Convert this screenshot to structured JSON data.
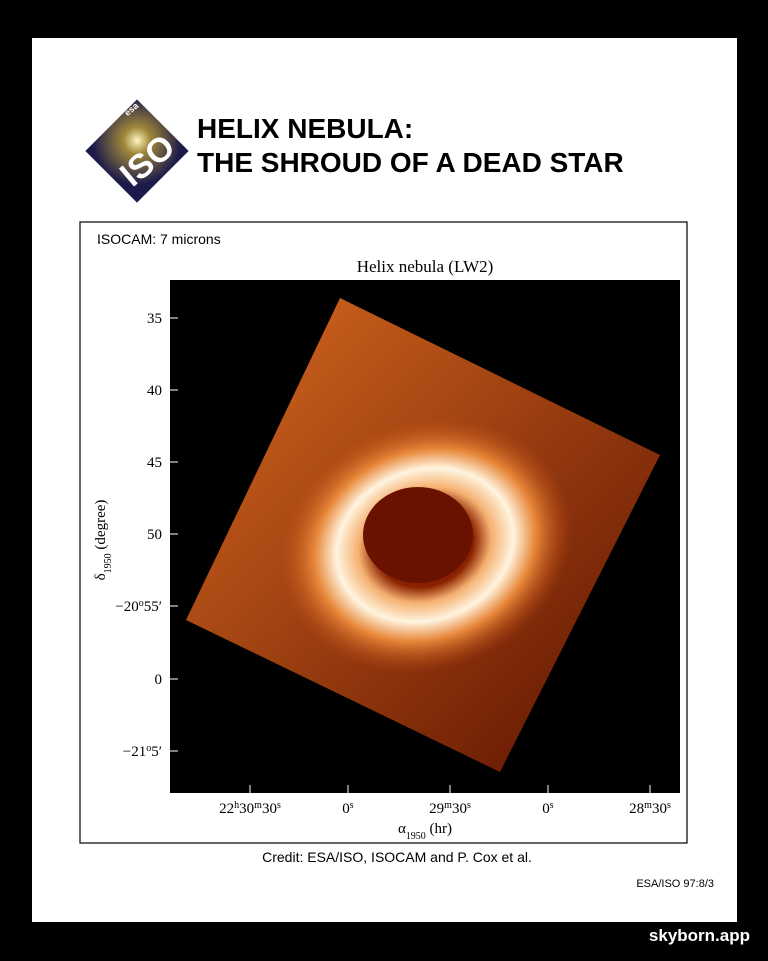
{
  "header": {
    "logo": {
      "agency": "esa",
      "mission": "ISO"
    },
    "title_lines": [
      "HELIX NEBULA:",
      "THE SHROUD OF A DEAD STAR"
    ]
  },
  "figure": {
    "panel_label": "ISOCAM: 7 microns",
    "plot_title": "Helix nebula (LW2)",
    "y_ticks": [
      [
        "35"
      ],
      [
        "40"
      ],
      [
        "45"
      ],
      [
        "50"
      ],
      [
        "−20",
        "o",
        "55′"
      ],
      [
        "0"
      ],
      [
        "−21",
        "o",
        "5′"
      ]
    ],
    "x_ticks": [
      [
        "22",
        "h",
        "30",
        "m",
        "30",
        "s"
      ],
      [
        "0",
        "s"
      ],
      [
        "29",
        "m",
        "30",
        "s"
      ],
      [
        "0",
        "s"
      ],
      [
        "28",
        "m",
        "30",
        "s"
      ]
    ],
    "x_label": [
      "α",
      "1950",
      " (hr)"
    ],
    "y_label": [
      "δ",
      "1950",
      " (degree)"
    ]
  },
  "credit": "Credit: ESA/ISO, ISOCAM and P. Cox et al.",
  "reference": "ESA/ISO 97:8/3",
  "watermark": "skyborn.app"
}
